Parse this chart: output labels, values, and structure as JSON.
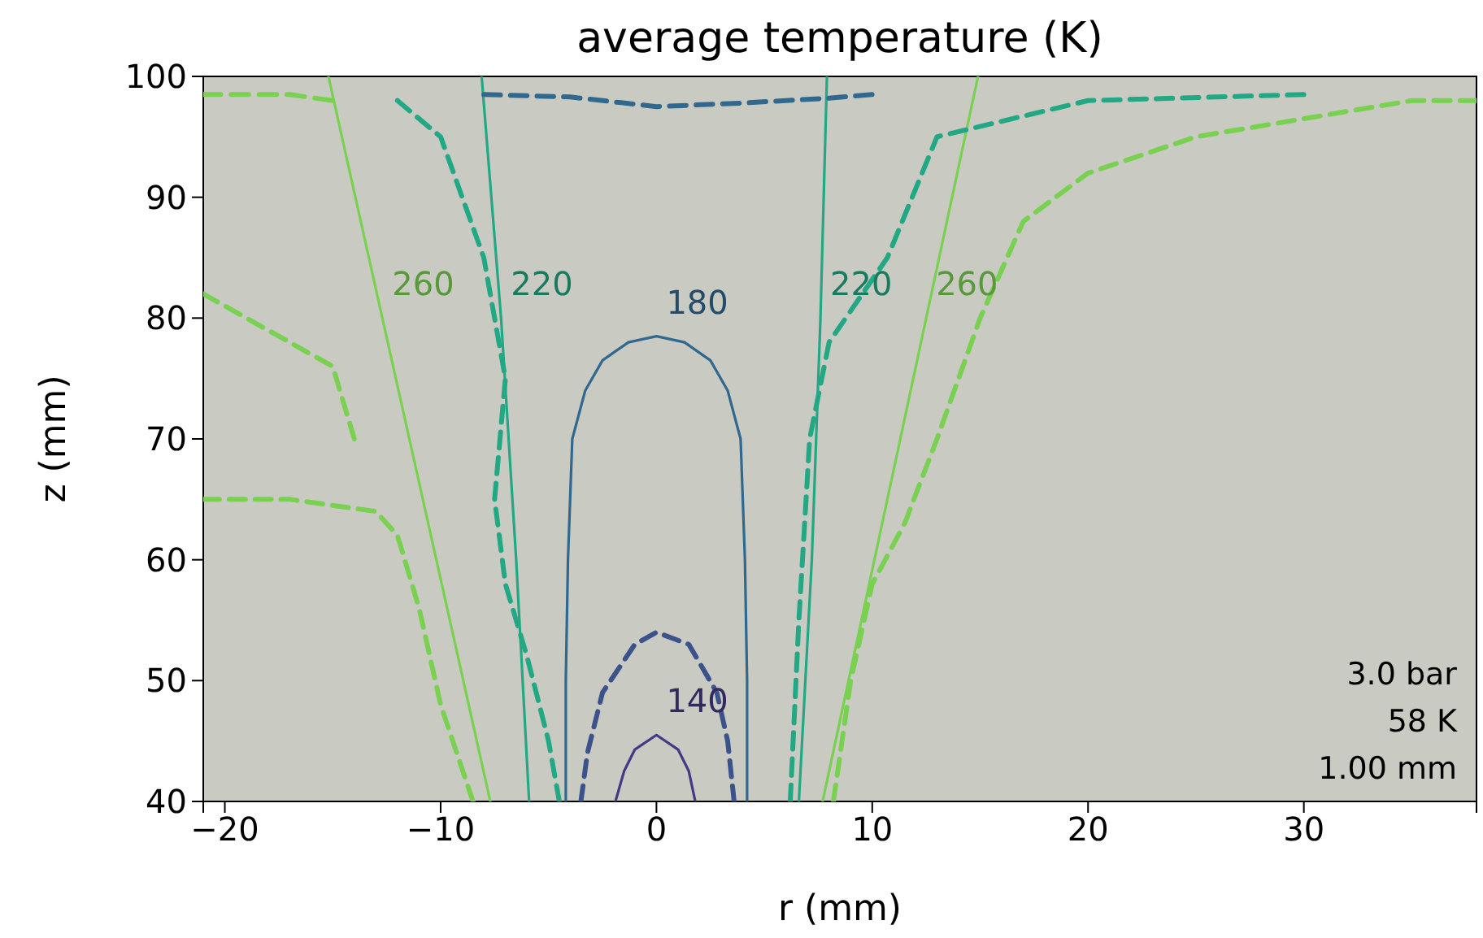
{
  "chart_data": {
    "type": "line",
    "title": "average temperature (K)",
    "xlabel": "r (mm)",
    "ylabel": "z (mm)",
    "xlim": [
      -21,
      38
    ],
    "ylim": [
      40,
      100
    ],
    "xticks": [
      -20,
      -10,
      0,
      10,
      20,
      30
    ],
    "yticks": [
      40,
      50,
      60,
      70,
      80,
      90,
      100
    ],
    "grid": false,
    "marker": "none",
    "annotations": [
      "3.0 bar",
      "58 K",
      "1.00 mm"
    ],
    "series": [
      {
        "name": "140",
        "color": "#443983",
        "line_style": "solid",
        "x": [
          -1.9,
          -1.5,
          -1,
          0,
          1,
          1.5,
          1.8
        ],
        "values": [
          40,
          42.5,
          44.3,
          45.5,
          44.3,
          42.5,
          40
        ]
      },
      {
        "name": "180",
        "color": "#31688e",
        "line_style": "solid",
        "x": [
          -4.2,
          -4.2,
          -4.1,
          -3.9,
          -3.3,
          -2.5,
          -1.3,
          0,
          1.3,
          2.5,
          3.3,
          3.9,
          4.1,
          4.2,
          4.2
        ],
        "values": [
          40,
          50,
          60,
          70,
          74,
          76.5,
          78,
          78.5,
          78,
          76.5,
          74,
          70,
          60,
          50,
          40
        ]
      },
      {
        "name": "220",
        "color": "#22a884",
        "line_style": "solid",
        "x": [
          -5.9,
          -6.5,
          -7.2,
          -8.1
        ],
        "values": [
          40,
          60,
          80,
          100
        ]
      },
      {
        "name": "220",
        "color": "#22a884",
        "line_style": "solid",
        "x": [
          6.6,
          7.2,
          7.6,
          7.9
        ],
        "values": [
          40,
          60,
          80,
          100
        ]
      },
      {
        "name": "260",
        "color": "#7ad151",
        "line_style": "solid",
        "x": [
          -7.7,
          -10.2,
          -12.7,
          -15.2
        ],
        "values": [
          40,
          60,
          80,
          100
        ]
      },
      {
        "name": "260",
        "color": "#7ad151",
        "line_style": "solid",
        "x": [
          7.7,
          10.1,
          12.5,
          14.9
        ],
        "values": [
          40,
          60,
          80,
          100
        ]
      },
      {
        "color": "#3b528b",
        "line_style": "dashed",
        "x": [
          -3.5,
          -3.2,
          -2.5,
          -1,
          0,
          1.5,
          2.8,
          3.3,
          3.6
        ],
        "values": [
          40,
          44,
          49,
          53,
          54,
          53,
          49,
          45,
          40
        ]
      },
      {
        "color": "#31688e",
        "line_style": "dashed",
        "x": [
          -8,
          -4,
          0,
          4,
          8,
          10
        ],
        "values": [
          98.5,
          98.3,
          97.5,
          97.8,
          98.2,
          98.5
        ]
      },
      {
        "color": "#22a884",
        "line_style": "dashed",
        "x": [
          -4.5,
          -5,
          -6,
          -7,
          -7.5,
          -7,
          -8,
          -10,
          -12
        ],
        "values": [
          40,
          45,
          52,
          58,
          65,
          75,
          85,
          95,
          98
        ]
      },
      {
        "color": "#22a884",
        "line_style": "dashed",
        "x": [
          6.2,
          6.6,
          7.1,
          8,
          10.7,
          13,
          20,
          30
        ],
        "values": [
          40,
          55,
          70,
          78,
          85,
          95,
          98,
          98.5
        ]
      },
      {
        "color": "#7ad151",
        "line_style": "dashed",
        "x": [
          -21,
          -17,
          -13,
          -12,
          -11,
          -10,
          -8.5
        ],
        "values": [
          65,
          65,
          64,
          62,
          56,
          48,
          40
        ]
      },
      {
        "color": "#7ad151",
        "line_style": "dashed",
        "x": [
          -21,
          -18,
          -15,
          -14
        ],
        "values": [
          82,
          79,
          76,
          70
        ]
      },
      {
        "color": "#7ad151",
        "line_style": "dashed",
        "x": [
          8.2,
          9,
          10,
          11.5,
          13,
          15,
          17,
          20,
          25,
          35,
          38
        ],
        "values": [
          40,
          50,
          58,
          63,
          70,
          80,
          88,
          92,
          95,
          98,
          98
        ]
      },
      {
        "color": "#7ad151",
        "line_style": "dashed",
        "x": [
          -21,
          -17,
          -15
        ],
        "values": [
          98.5,
          98.5,
          98
        ]
      }
    ]
  }
}
